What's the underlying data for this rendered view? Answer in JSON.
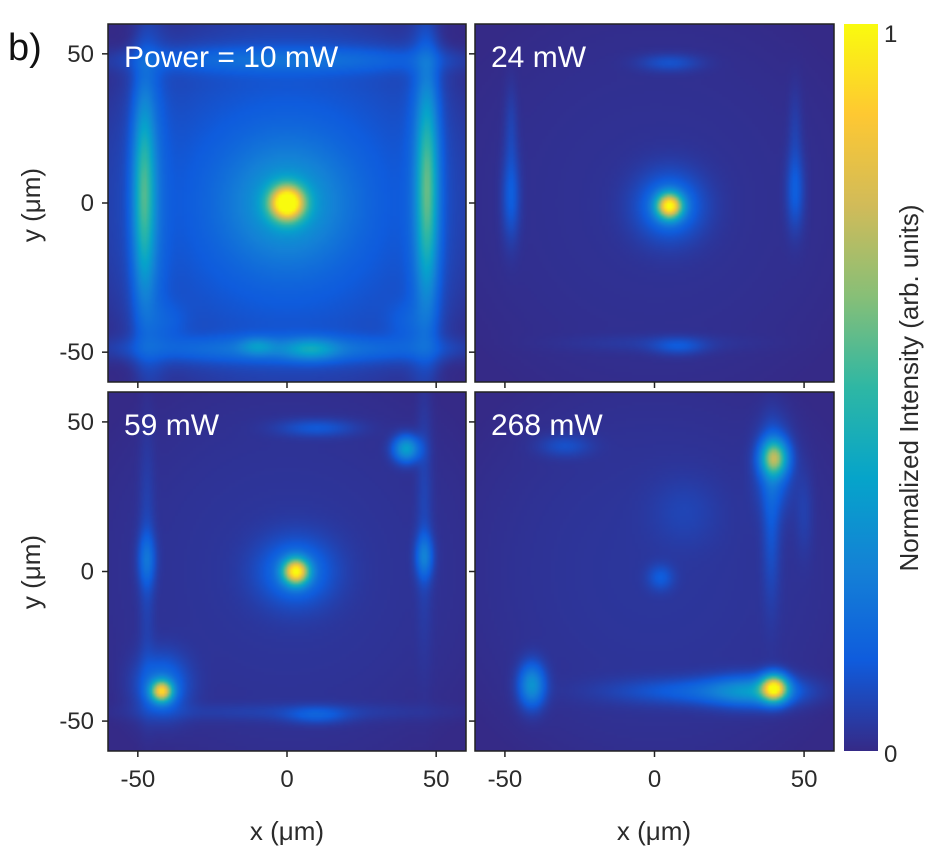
{
  "figure_label": "b)",
  "colors": {
    "background_low": "#352a87",
    "colormap": [
      "#352a87",
      "#0f5cdd",
      "#1481d6",
      "#06a4ca",
      "#2eb7a4",
      "#87bf77",
      "#d1bb59",
      "#fec832",
      "#f9fb0e"
    ]
  },
  "chart_data": {
    "type": "heatmap",
    "title": "",
    "xlabel": "x (μm)",
    "ylabel": "y (μm)",
    "xlim": [
      -60,
      60
    ],
    "ylim": [
      -60,
      60
    ],
    "xticks": [
      -50,
      0,
      50
    ],
    "yticks": [
      -50,
      0,
      50
    ],
    "xtick_labels": [
      "-50",
      "0",
      "50"
    ],
    "ytick_labels": [
      "-50",
      "0",
      "50"
    ],
    "colorbar": {
      "label": "Normalized Intensity (arb. units)",
      "min": 0,
      "max": 1,
      "tick_labels": [
        "1",
        "0"
      ]
    },
    "panels": [
      {
        "label": "Power = 10 mW",
        "power_mW": 10,
        "base_glow": 0.14,
        "features": [
          {
            "x": 0,
            "y": 0,
            "sx": 4,
            "sy": 4,
            "amp": 0.9
          },
          {
            "x": 0,
            "y": 0,
            "sx": 14,
            "sy": 14,
            "amp": 0.22
          },
          {
            "x": -48,
            "y": 3,
            "sx": 2.5,
            "sy": 22,
            "amp": 0.38
          },
          {
            "x": 47,
            "y": 5,
            "sx": 2.5,
            "sy": 24,
            "amp": 0.4
          },
          {
            "x": -46,
            "y": 0,
            "sx": 4,
            "sy": 45,
            "amp": 0.1
          },
          {
            "x": 46,
            "y": 0,
            "sx": 4,
            "sy": 45,
            "amp": 0.1
          },
          {
            "x": 0,
            "y": -49,
            "sx": 40,
            "sy": 3,
            "amp": 0.14
          },
          {
            "x": 8,
            "y": -49,
            "sx": 6,
            "sy": 2.5,
            "amp": 0.2
          },
          {
            "x": -10,
            "y": -48,
            "sx": 4,
            "sy": 2,
            "amp": 0.15
          },
          {
            "x": 0,
            "y": 48,
            "sx": 40,
            "sy": 3,
            "amp": 0.12
          },
          {
            "x": -40,
            "y": -40,
            "sx": 5,
            "sy": 5,
            "amp": 0.06
          },
          {
            "x": 40,
            "y": -40,
            "sx": 5,
            "sy": 5,
            "amp": 0.06
          }
        ]
      },
      {
        "label": "24 mW",
        "power_mW": 24,
        "base_glow": 0.02,
        "features": [
          {
            "x": 5,
            "y": -1,
            "sx": 3,
            "sy": 3,
            "amp": 0.85
          },
          {
            "x": 5,
            "y": -1,
            "sx": 8,
            "sy": 8,
            "amp": 0.18
          },
          {
            "x": -48,
            "y": 2,
            "sx": 2,
            "sy": 10,
            "amp": 0.12
          },
          {
            "x": 47,
            "y": 4,
            "sx": 2,
            "sy": 9,
            "amp": 0.12
          },
          {
            "x": -48,
            "y": 25,
            "sx": 1.5,
            "sy": 10,
            "amp": 0.05
          },
          {
            "x": 47,
            "y": 25,
            "sx": 1.5,
            "sy": 10,
            "amp": 0.04
          },
          {
            "x": 5,
            "y": 47,
            "sx": 7,
            "sy": 2,
            "amp": 0.09
          },
          {
            "x": 8,
            "y": -48,
            "sx": 6,
            "sy": 2,
            "amp": 0.09
          },
          {
            "x": 0,
            "y": -47,
            "sx": 20,
            "sy": 2,
            "amp": 0.03
          }
        ]
      },
      {
        "label": "59 mW",
        "power_mW": 59,
        "base_glow": 0.03,
        "features": [
          {
            "x": 3,
            "y": 0,
            "sx": 3,
            "sy": 3,
            "amp": 0.85
          },
          {
            "x": 3,
            "y": 0,
            "sx": 9,
            "sy": 8,
            "amp": 0.17
          },
          {
            "x": -42,
            "y": -40,
            "sx": 2.5,
            "sy": 2.5,
            "amp": 0.75
          },
          {
            "x": -42,
            "y": -38,
            "sx": 6,
            "sy": 7,
            "amp": 0.18
          },
          {
            "x": 40,
            "y": 41,
            "sx": 3,
            "sy": 3,
            "amp": 0.35
          },
          {
            "x": 46,
            "y": 5,
            "sx": 2,
            "sy": 5,
            "amp": 0.2
          },
          {
            "x": -47,
            "y": 4,
            "sx": 2,
            "sy": 6,
            "amp": 0.15
          },
          {
            "x": -47,
            "y": 5,
            "sx": 1.8,
            "sy": 30,
            "amp": 0.05
          },
          {
            "x": 46,
            "y": 20,
            "sx": 1.8,
            "sy": 30,
            "amp": 0.05
          },
          {
            "x": 10,
            "y": -48,
            "sx": 7,
            "sy": 2,
            "amp": 0.1
          },
          {
            "x": 10,
            "y": 48,
            "sx": 9,
            "sy": 2,
            "amp": 0.1
          },
          {
            "x": 0,
            "y": -47,
            "sx": 35,
            "sy": 2,
            "amp": 0.04
          }
        ]
      },
      {
        "label": "268 mW",
        "power_mW": 268,
        "base_glow": 0.03,
        "features": [
          {
            "x": 40,
            "y": -39,
            "sx": 3,
            "sy": 3,
            "amp": 0.85
          },
          {
            "x": 33,
            "y": -40,
            "sx": 10,
            "sy": 3.5,
            "amp": 0.25
          },
          {
            "x": 15,
            "y": -40,
            "sx": 20,
            "sy": 3,
            "amp": 0.12
          },
          {
            "x": 40,
            "y": 38,
            "sx": 3,
            "sy": 4,
            "amp": 0.55
          },
          {
            "x": 40,
            "y": 35,
            "sx": 4,
            "sy": 10,
            "amp": 0.15
          },
          {
            "x": 39,
            "y": 15,
            "sx": 2,
            "sy": 18,
            "amp": 0.08
          },
          {
            "x": -41,
            "y": -38,
            "sx": 3,
            "sy": 5,
            "amp": 0.3
          },
          {
            "x": 2,
            "y": -2,
            "sx": 3,
            "sy": 3,
            "amp": 0.1
          },
          {
            "x": -30,
            "y": 42,
            "sx": 6,
            "sy": 2.5,
            "amp": 0.08
          },
          {
            "x": 10,
            "y": 20,
            "sx": 8,
            "sy": 8,
            "amp": 0.04
          },
          {
            "x": 50,
            "y": 20,
            "sx": 2,
            "sy": 10,
            "amp": 0.04
          }
        ]
      }
    ]
  }
}
